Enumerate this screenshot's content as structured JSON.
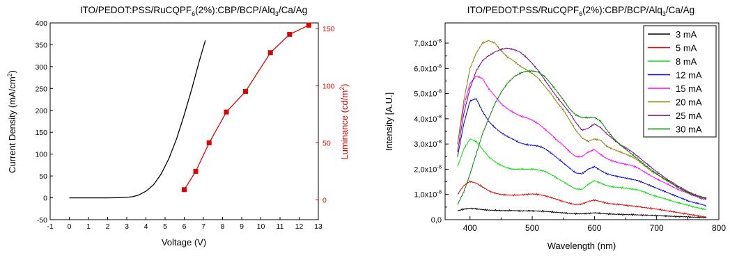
{
  "chart_data": [
    {
      "type": "line",
      "title": "ITO/PEDOT:PSS/RuCQPF6(2%):CBP/BCP/Alq3/Ca/Ag",
      "title_parts": {
        "pre": "ITO/PEDOT:PSS/RuCQPF",
        "sub1": "6",
        "mid": "(2%):CBP/BCP/Alq",
        "sub2": "3",
        "post": "/Ca/Ag"
      },
      "xlabel": "Voltage (V)",
      "ylabel": "Current Density (mA/cm",
      "ylabel_sup": "2",
      "ylabel_end": ")",
      "y2label": "Luminance (cd/m",
      "y2label_sup": "2",
      "y2label_end": ")",
      "xlim": [
        -1,
        13
      ],
      "ylim": [
        -50,
        400
      ],
      "y2lim": [
        -17.3,
        155
      ],
      "xticks": [
        "-1",
        "0",
        "1",
        "2",
        "3",
        "4",
        "5",
        "6",
        "7",
        "8",
        "9",
        "10",
        "11",
        "12",
        "13"
      ],
      "yticks": [
        "-50",
        "0",
        "50",
        "100",
        "150",
        "200",
        "250",
        "300",
        "350",
        "400"
      ],
      "y2ticks": [
        "0",
        "50",
        "100",
        "150"
      ],
      "axis_colors": {
        "left": "#000000",
        "right": "#e00000"
      },
      "series": [
        {
          "axis": "left",
          "color": "#000000",
          "marker": "none",
          "x": [
            0,
            1,
            2,
            2.5,
            3,
            3.3,
            3.6,
            4,
            4.4,
            4.8,
            5.2,
            5.6,
            6,
            6.4,
            6.8,
            7.1
          ],
          "y": [
            0,
            0,
            0,
            0.3,
            1,
            2.5,
            6,
            15,
            30,
            55,
            90,
            135,
            190,
            250,
            315,
            360
          ]
        },
        {
          "axis": "right",
          "color": "#e00000",
          "marker": "square",
          "x": [
            6.0,
            6.6,
            7.3,
            8.2,
            9.2,
            10.5,
            11.5,
            12.5
          ],
          "y": [
            9,
            25,
            50,
            77,
            95,
            129,
            145,
            153
          ]
        }
      ]
    },
    {
      "type": "line",
      "title": "ITO/PEDOT:PSS/RuCQPF6(2%):CBP/BCP/Alq3/Ca/Ag",
      "title_parts": {
        "pre": "ITO/PEDOT:PSS/RuCQPF",
        "sub1": "6",
        "mid": "(2%):CBP/BCP/Alq",
        "sub2": "3",
        "post": "/Ca/Ag"
      },
      "xlabel": "Wavelength (nm)",
      "ylabel": "Intensity [A.U.]",
      "xlim": [
        360,
        800
      ],
      "ylim": [
        0,
        7.8e-08
      ],
      "xticks": [
        "400",
        "500",
        "600",
        "700",
        "800"
      ],
      "yticks": [
        {
          "mant": "0,0",
          "exp": ""
        },
        {
          "mant": "1,0x10",
          "exp": "-8"
        },
        {
          "mant": "2,0x10",
          "exp": "-8"
        },
        {
          "mant": "3,0x10",
          "exp": "-8"
        },
        {
          "mant": "4,0x10",
          "exp": "-8"
        },
        {
          "mant": "5,0x10",
          "exp": "-8"
        },
        {
          "mant": "6,0x10",
          "exp": "-8"
        },
        {
          "mant": "7,0x10",
          "exp": "-8"
        }
      ],
      "legend_position": "top-right",
      "x": [
        380,
        390,
        400,
        410,
        420,
        430,
        440,
        450,
        460,
        470,
        480,
        490,
        500,
        510,
        520,
        530,
        540,
        550,
        560,
        570,
        580,
        590,
        600,
        610,
        620,
        630,
        640,
        650,
        660,
        670,
        680,
        690,
        700,
        710,
        720,
        730,
        740,
        750,
        760,
        770,
        780
      ],
      "series": [
        {
          "name": "3 mA",
          "color": "#000000",
          "values": [
            0.35,
            0.42,
            0.45,
            0.43,
            0.4,
            0.38,
            0.37,
            0.36,
            0.36,
            0.36,
            0.35,
            0.35,
            0.35,
            0.34,
            0.33,
            0.31,
            0.29,
            0.27,
            0.25,
            0.24,
            0.23,
            0.25,
            0.27,
            0.25,
            0.23,
            0.22,
            0.21,
            0.2,
            0.2,
            0.19,
            0.18,
            0.17,
            0.16,
            0.15,
            0.14,
            0.13,
            0.12,
            0.11,
            0.1,
            0.09,
            0.08
          ]
        },
        {
          "name": "5 mA",
          "color": "#e00000",
          "values": [
            1.0,
            1.35,
            1.52,
            1.45,
            1.3,
            1.15,
            1.05,
            1.0,
            0.98,
            0.97,
            0.98,
            1.0,
            1.02,
            1.0,
            0.95,
            0.88,
            0.8,
            0.72,
            0.65,
            0.6,
            0.62,
            0.72,
            0.78,
            0.72,
            0.65,
            0.62,
            0.6,
            0.57,
            0.55,
            0.52,
            0.48,
            0.45,
            0.42,
            0.38,
            0.34,
            0.3,
            0.26,
            0.22,
            0.18,
            0.14,
            0.1
          ]
        },
        {
          "name": "8 mA",
          "color": "#00e000",
          "values": [
            2.1,
            2.8,
            3.2,
            3.1,
            2.8,
            2.5,
            2.3,
            2.15,
            2.05,
            2.0,
            2.0,
            2.0,
            2.0,
            1.98,
            1.92,
            1.8,
            1.65,
            1.5,
            1.35,
            1.22,
            1.2,
            1.4,
            1.55,
            1.45,
            1.35,
            1.3,
            1.28,
            1.25,
            1.22,
            1.18,
            1.1,
            1.0,
            0.92,
            0.85,
            0.78,
            0.7,
            0.64,
            0.58,
            0.5,
            0.45,
            0.4
          ]
        },
        {
          "name": "12 mA",
          "color": "#0000e0",
          "values": [
            2.5,
            3.8,
            4.7,
            4.8,
            4.3,
            3.9,
            3.65,
            3.45,
            3.3,
            3.18,
            3.05,
            2.98,
            2.95,
            2.92,
            2.82,
            2.65,
            2.45,
            2.25,
            2.05,
            1.85,
            1.82,
            2.0,
            2.1,
            1.95,
            1.82,
            1.75,
            1.7,
            1.65,
            1.6,
            1.55,
            1.45,
            1.35,
            1.25,
            1.15,
            1.05,
            0.95,
            0.85,
            0.75,
            0.68,
            0.62,
            0.55
          ]
        },
        {
          "name": "15 mA",
          "color": "#ff00ff",
          "values": [
            3.0,
            4.5,
            5.4,
            5.7,
            5.6,
            5.2,
            4.9,
            4.6,
            4.4,
            4.25,
            4.12,
            4.05,
            3.95,
            3.8,
            3.6,
            3.38,
            3.15,
            2.95,
            2.7,
            2.5,
            2.5,
            2.68,
            2.78,
            2.58,
            2.42,
            2.32,
            2.25,
            2.2,
            2.15,
            2.05,
            1.9,
            1.75,
            1.62,
            1.5,
            1.38,
            1.25,
            1.15,
            1.05,
            0.95,
            0.85,
            0.8
          ]
        },
        {
          "name": "20 mA",
          "color": "#808000",
          "values": [
            3.0,
            4.7,
            6.0,
            6.6,
            7.0,
            7.1,
            7.0,
            6.7,
            6.45,
            6.3,
            6.1,
            5.95,
            5.8,
            5.6,
            5.3,
            5.0,
            4.65,
            4.35,
            3.95,
            3.55,
            3.25,
            3.1,
            3.2,
            3.15,
            2.9,
            2.8,
            2.7,
            2.6,
            2.5,
            2.35,
            2.15,
            1.95,
            1.8,
            1.65,
            1.5,
            1.35,
            1.2,
            1.1,
            1.0,
            0.9,
            0.82
          ]
        },
        {
          "name": "25 mA",
          "color": "#800080",
          "values": [
            2.7,
            4.2,
            5.2,
            5.9,
            6.3,
            6.5,
            6.65,
            6.75,
            6.8,
            6.75,
            6.65,
            6.45,
            6.2,
            5.9,
            5.55,
            5.2,
            4.85,
            4.55,
            4.25,
            3.85,
            3.55,
            3.62,
            3.8,
            3.65,
            3.4,
            3.2,
            3.0,
            2.85,
            2.7,
            2.5,
            2.3,
            2.1,
            1.9,
            1.72,
            1.55,
            1.4,
            1.25,
            1.12,
            1.0,
            0.92,
            0.85
          ]
        },
        {
          "name": "30 mA",
          "color": "#008000",
          "values": [
            0.6,
            1.1,
            1.8,
            2.6,
            3.4,
            4.0,
            4.6,
            5.05,
            5.4,
            5.65,
            5.8,
            5.88,
            5.9,
            5.85,
            5.68,
            5.4,
            5.08,
            4.75,
            4.4,
            4.15,
            4.05,
            4.05,
            4.05,
            3.9,
            3.55,
            3.25,
            3.0,
            2.8,
            2.6,
            2.4,
            2.2,
            2.0,
            1.82,
            1.65,
            1.5,
            1.35,
            1.2,
            1.08,
            0.98,
            0.9,
            0.85
          ]
        }
      ],
      "value_scale_exponent": -8
    }
  ]
}
